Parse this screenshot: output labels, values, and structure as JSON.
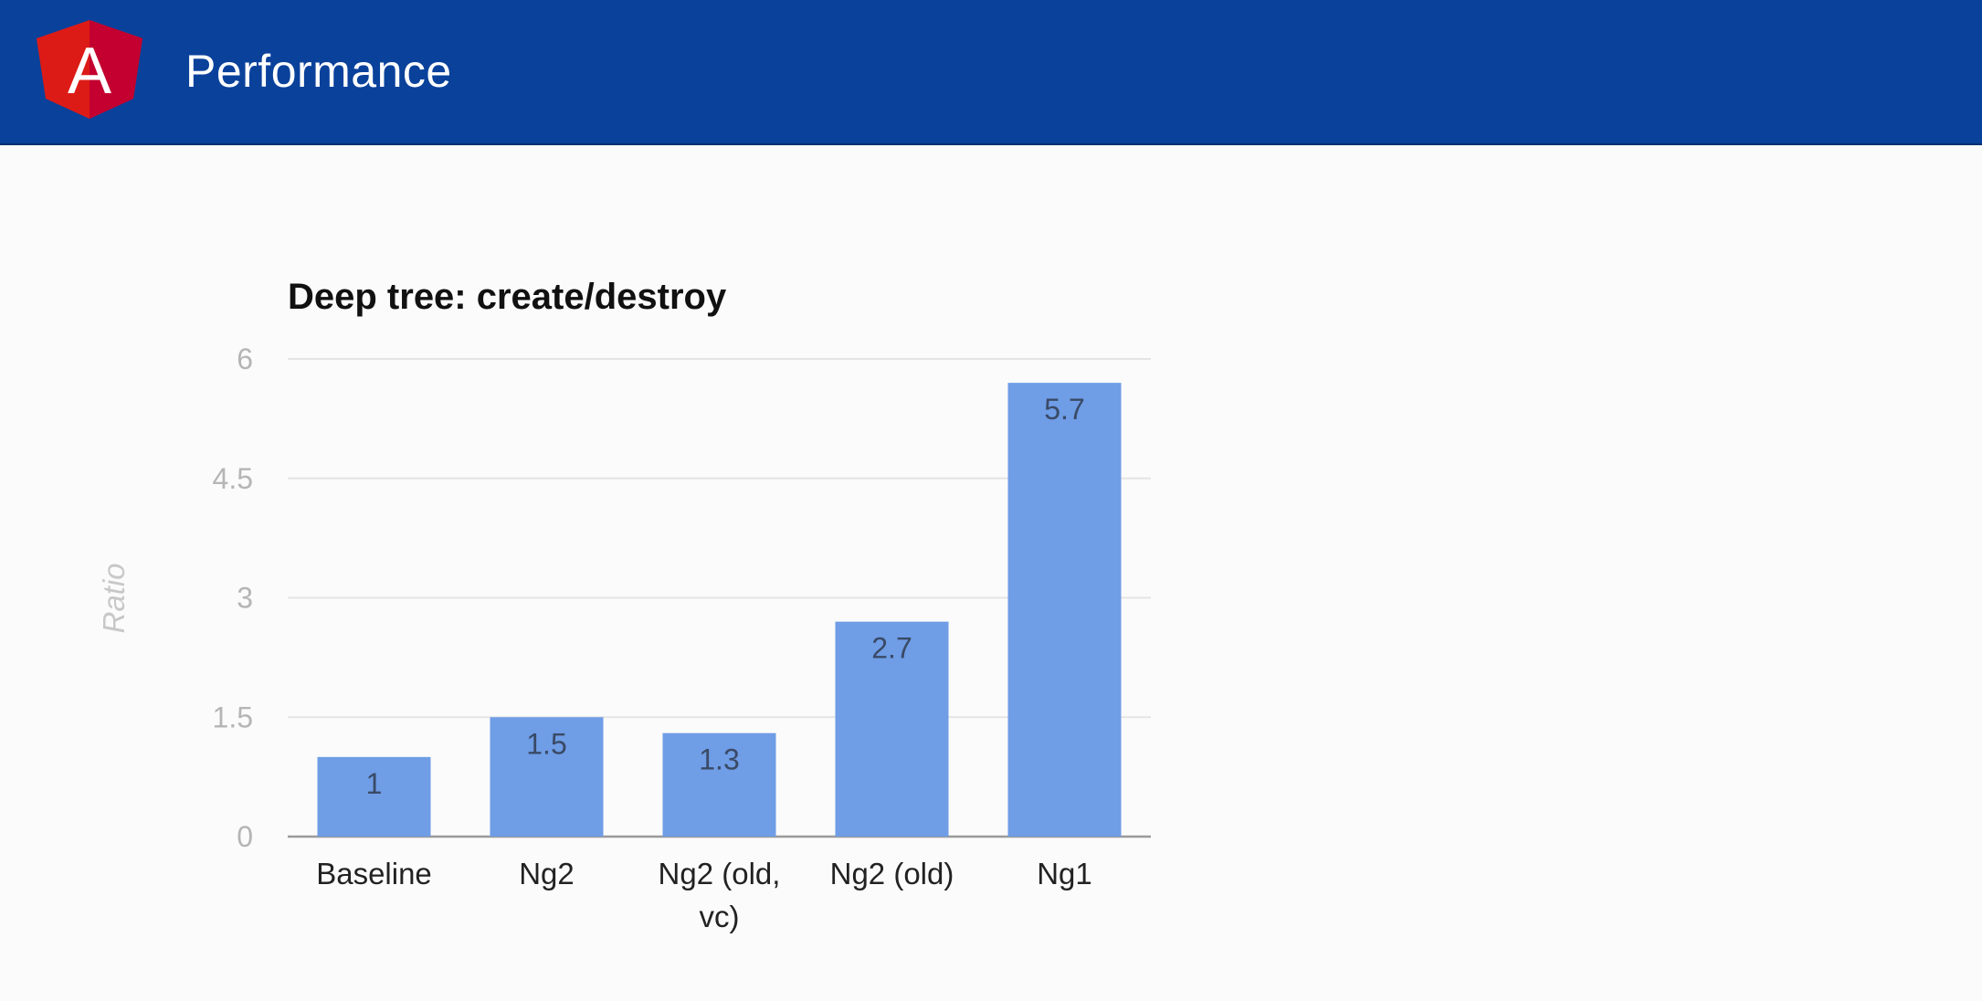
{
  "header": {
    "title": "Performance",
    "logo_letter": "A",
    "background_color": "#0a419b"
  },
  "chart_data": {
    "type": "bar",
    "title": "Deep tree: create/destroy",
    "xlabel": "",
    "ylabel": "Ratio",
    "categories": [
      "Baseline",
      "Ng2",
      "Ng2 (old, vc)",
      "Ng2 (old)",
      "Ng1"
    ],
    "category_lines": [
      [
        "Baseline"
      ],
      [
        "Ng2"
      ],
      [
        "Ng2 (old,",
        "vc)"
      ],
      [
        "Ng2 (old)"
      ],
      [
        "Ng1"
      ]
    ],
    "values": [
      1,
      1.5,
      1.3,
      2.7,
      5.7
    ],
    "data_labels": [
      "1",
      "1.5",
      "1.3",
      "2.7",
      "5.7"
    ],
    "yticks": [
      "0",
      "1.5",
      "3",
      "4.5",
      "6"
    ],
    "ylim": [
      0,
      6
    ],
    "grid": true,
    "legend": "none",
    "bar_color": "#6f9de6"
  }
}
